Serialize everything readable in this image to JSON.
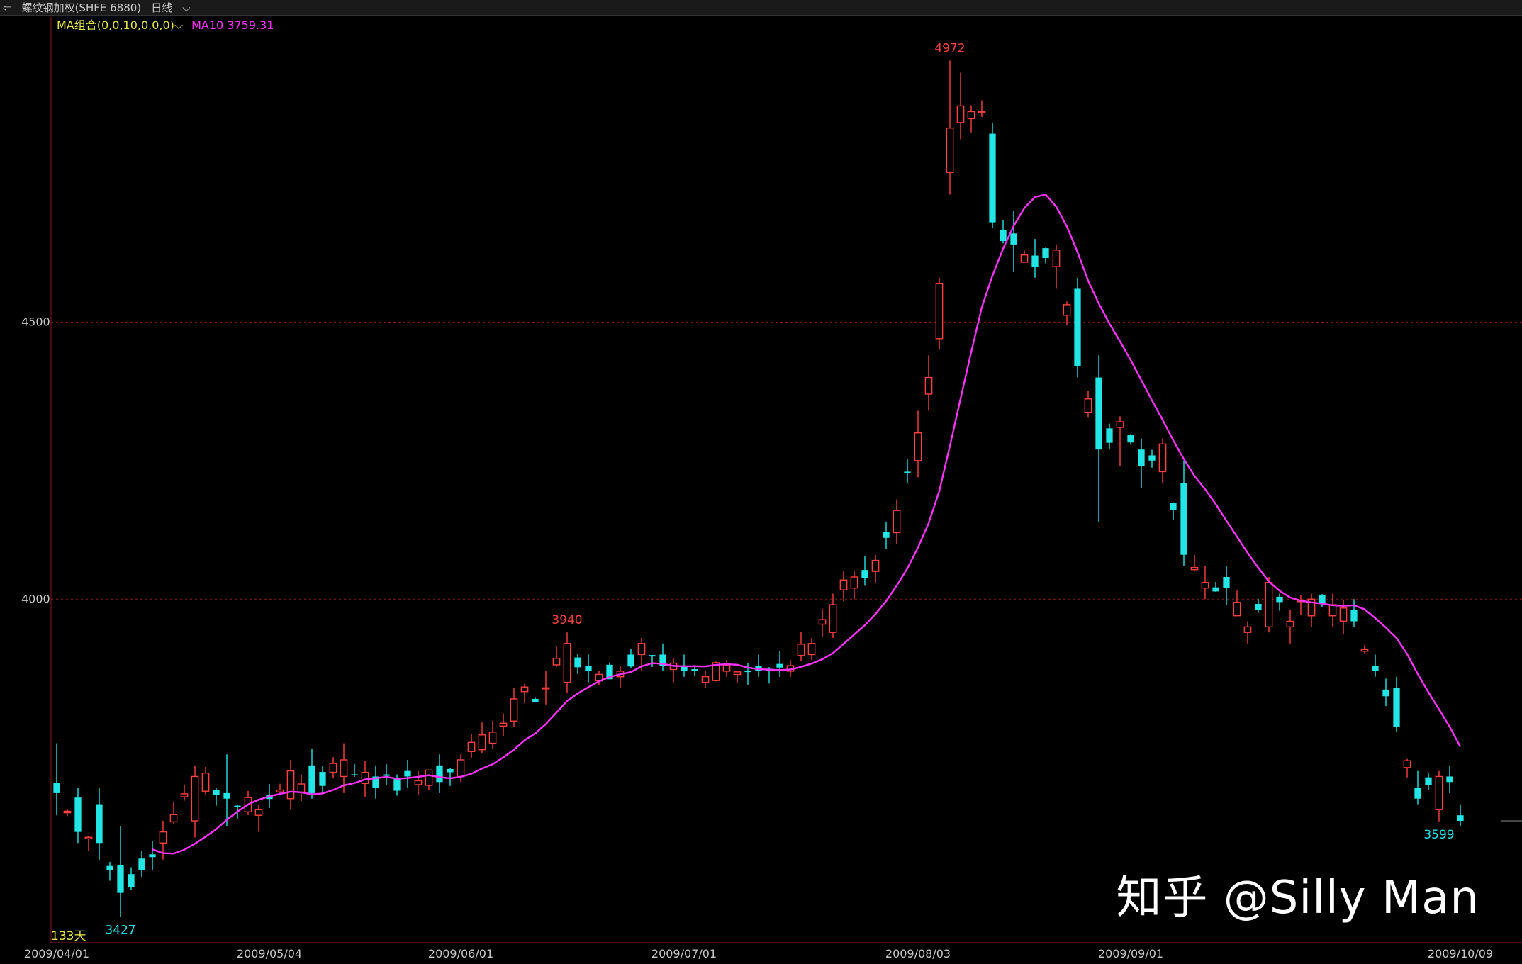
{
  "header": {
    "back_icon": "back-arrow-icon",
    "instrument": "螺纹钢加权(SHFE 6880)",
    "period": "日线"
  },
  "indicator": {
    "label": "MA组合(0,0,10,0,0,0)",
    "value": "MA10 3759.31",
    "ma_color": "#ff33ff"
  },
  "bar_count": "133天",
  "watermark": "知乎 @Silly Man",
  "colors": {
    "up": "#ff4040",
    "down": "#22e5e5",
    "ma": "#ff33ff",
    "grid": "#8b1a1a",
    "axis_text": "#c8c8c8"
  },
  "chart_data": {
    "type": "candlestick",
    "title": "",
    "series": [
      {
        "name": "MA10",
        "type": "line"
      }
    ],
    "ylim": [
      3380,
      5030
    ],
    "y_ticks": [
      4000,
      4500
    ],
    "x_ticks": [
      "2009/04/01",
      "2009/05/04",
      "2009/06/01",
      "2009/07/01",
      "2009/08/03",
      "2009/09/01",
      "2009/10/09"
    ],
    "x_tick_index": [
      0,
      20,
      38,
      59,
      81,
      101,
      132
    ],
    "annotations": [
      {
        "text": "4972",
        "index": 84,
        "value": 4972,
        "kind": "high"
      },
      {
        "text": "3940",
        "index": 48,
        "value": 3940,
        "kind": "high"
      },
      {
        "text": "3427",
        "index": 6,
        "value": 3427,
        "kind": "low"
      },
      {
        "text": "3599",
        "index": 130,
        "value": 3599,
        "kind": "low"
      }
    ],
    "last_close": 3600,
    "ohlc_anchor": [
      [
        0,
        3668,
        3740,
        3610,
        3650
      ],
      [
        2,
        3642,
        3660,
        3560,
        3580
      ],
      [
        4,
        3630,
        3660,
        3530,
        3560
      ],
      [
        6,
        3520,
        3590,
        3427,
        3470
      ],
      [
        10,
        3560,
        3600,
        3530,
        3580
      ],
      [
        13,
        3600,
        3700,
        3570,
        3680
      ],
      [
        16,
        3650,
        3720,
        3590,
        3640
      ],
      [
        19,
        3610,
        3630,
        3580,
        3620
      ],
      [
        22,
        3640,
        3710,
        3620,
        3690
      ],
      [
        24,
        3700,
        3730,
        3640,
        3650
      ],
      [
        27,
        3680,
        3740,
        3650,
        3710
      ],
      [
        30,
        3680,
        3700,
        3640,
        3660
      ],
      [
        33,
        3690,
        3710,
        3660,
        3680
      ],
      [
        36,
        3700,
        3720,
        3650,
        3670
      ],
      [
        38,
        3680,
        3720,
        3670,
        3710
      ],
      [
        41,
        3740,
        3780,
        3730,
        3760
      ],
      [
        43,
        3780,
        3840,
        3770,
        3820
      ],
      [
        46,
        3840,
        3870,
        3810,
        3840
      ],
      [
        48,
        3850,
        3940,
        3830,
        3920
      ],
      [
        50,
        3880,
        3900,
        3850,
        3870
      ],
      [
        53,
        3860,
        3880,
        3840,
        3870
      ],
      [
        55,
        3900,
        3930,
        3870,
        3920
      ],
      [
        57,
        3900,
        3920,
        3870,
        3880
      ],
      [
        59,
        3880,
        3900,
        3860,
        3870
      ],
      [
        61,
        3850,
        3870,
        3840,
        3860
      ],
      [
        63,
        3870,
        3890,
        3860,
        3880
      ],
      [
        66,
        3880,
        3900,
        3860,
        3870
      ],
      [
        69,
        3870,
        3890,
        3860,
        3880
      ],
      [
        71,
        3900,
        3930,
        3890,
        3920
      ],
      [
        73,
        3940,
        4010,
        3930,
        3990
      ],
      [
        75,
        4020,
        4050,
        4000,
        4040
      ],
      [
        77,
        4050,
        4080,
        4030,
        4070
      ],
      [
        79,
        4120,
        4180,
        4100,
        4160
      ],
      [
        81,
        4250,
        4340,
        4220,
        4300
      ],
      [
        82,
        4370,
        4440,
        4340,
        4400
      ],
      [
        83,
        4470,
        4580,
        4450,
        4570
      ],
      [
        84,
        4770,
        4972,
        4730,
        4850
      ],
      [
        85,
        4860,
        4950,
        4830,
        4890
      ],
      [
        87,
        4880,
        4900,
        4870,
        4880
      ],
      [
        88,
        4840,
        4860,
        4670,
        4680
      ],
      [
        90,
        4660,
        4700,
        4590,
        4640
      ],
      [
        92,
        4620,
        4650,
        4580,
        4600
      ],
      [
        94,
        4600,
        4640,
        4560,
        4630
      ],
      [
        96,
        4560,
        4580,
        4400,
        4420
      ],
      [
        98,
        4400,
        4440,
        4140,
        4270
      ],
      [
        100,
        4310,
        4330,
        4240,
        4320
      ],
      [
        102,
        4270,
        4290,
        4200,
        4240
      ],
      [
        104,
        4230,
        4290,
        4210,
        4280
      ],
      [
        106,
        4210,
        4250,
        4060,
        4080
      ],
      [
        108,
        4020,
        4060,
        4000,
        4030
      ],
      [
        110,
        4040,
        4060,
        3990,
        4020
      ],
      [
        112,
        3940,
        3960,
        3920,
        3950
      ],
      [
        114,
        3950,
        4040,
        3940,
        4030
      ],
      [
        116,
        3950,
        3980,
        3920,
        3960
      ],
      [
        118,
        3970,
        4010,
        3950,
        4000
      ],
      [
        120,
        3970,
        4010,
        3950,
        3990
      ],
      [
        122,
        3980,
        4000,
        3950,
        3960
      ],
      [
        124,
        3880,
        3900,
        3860,
        3870
      ],
      [
        126,
        3840,
        3860,
        3760,
        3770
      ],
      [
        128,
        3660,
        3690,
        3630,
        3640
      ],
      [
        130,
        3620,
        3690,
        3599,
        3680
      ],
      [
        131,
        3680,
        3700,
        3650,
        3670
      ],
      [
        132,
        3610,
        3630,
        3590,
        3600
      ]
    ]
  }
}
